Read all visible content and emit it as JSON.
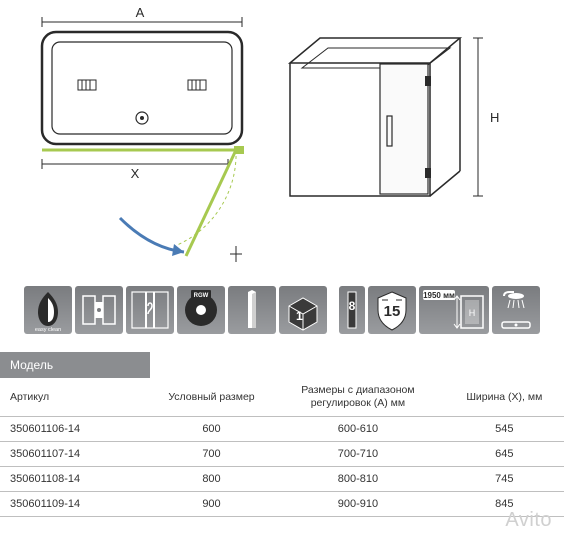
{
  "diagram": {
    "top_view": {
      "label_A": "A",
      "label_X": "X",
      "stroke": "#2a2a2a",
      "accent": "#a7c950",
      "arc_color": "#4a7bb5",
      "background": "#ffffff"
    },
    "iso_view": {
      "label_H": "H",
      "stroke": "#2a2a2a"
    }
  },
  "icons": {
    "easy_clean": "easy clean",
    "rgw_label": "RGW",
    "thickness": "8",
    "warranty": "15",
    "height_value": "1950",
    "height_unit": "мм",
    "box_label": "1"
  },
  "table": {
    "header_model": "Модель",
    "columns": [
      "Артикул",
      "Условный\nразмер",
      "Размеры\nс диапазоном\nрегулировок (A) мм",
      "Ширина (X),\nмм"
    ],
    "rows": [
      [
        "350601106-14",
        "600",
        "600-610",
        "545"
      ],
      [
        "350601107-14",
        "700",
        "700-710",
        "645"
      ],
      [
        "350601108-14",
        "800",
        "800-810",
        "745"
      ],
      [
        "350601109-14",
        "900",
        "900-910",
        "845"
      ]
    ]
  },
  "watermark": "Avito",
  "colors": {
    "icon_bg_top": "#7a7c7f",
    "icon_bg_bottom": "#9a9c9f",
    "table_header_bg": "#8b8d90",
    "border": "#bfbfbf",
    "text": "#333333",
    "white": "#ffffff"
  }
}
